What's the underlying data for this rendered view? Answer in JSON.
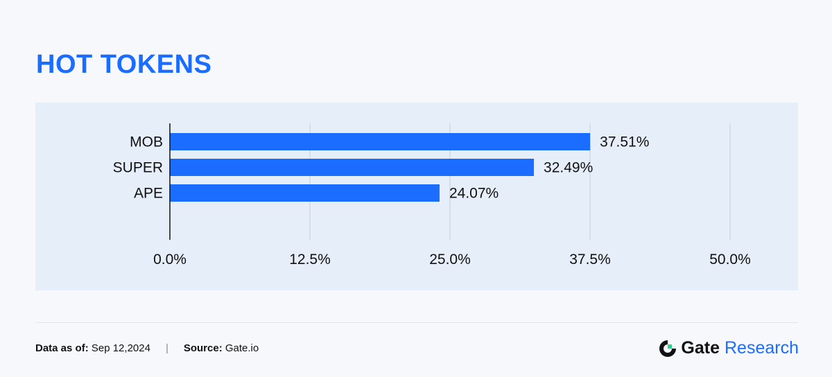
{
  "page": {
    "title": "HOT TOKENS"
  },
  "chart_data": {
    "type": "bar",
    "orientation": "horizontal",
    "categories": [
      "MOB",
      "SUPER",
      "APE"
    ],
    "values": [
      37.51,
      32.49,
      24.07
    ],
    "value_labels": [
      "37.51%",
      "32.49%",
      "24.07%"
    ],
    "xlim": [
      0,
      50
    ],
    "ticks": [
      0,
      12.5,
      25,
      37.5,
      50
    ],
    "tick_labels": [
      "0.0%",
      "12.5%",
      "25.0%",
      "37.5%",
      "50.0%"
    ],
    "title": "HOT TOKENS",
    "xlabel": "",
    "ylabel": "",
    "grid": true,
    "colors": {
      "bar": "#1a6dff",
      "grid": "#c5cfdb",
      "axis": "#111111"
    }
  },
  "footer": {
    "date_label": "Data as of:",
    "date_value": "Sep 12,2024",
    "separator": "|",
    "source_label": "Source:",
    "source_value": "Gate.io"
  },
  "brand": {
    "name": "Gate",
    "suffix": "Research",
    "accent": "#1a6dff",
    "logo_icon": "gate-logo-icon"
  }
}
